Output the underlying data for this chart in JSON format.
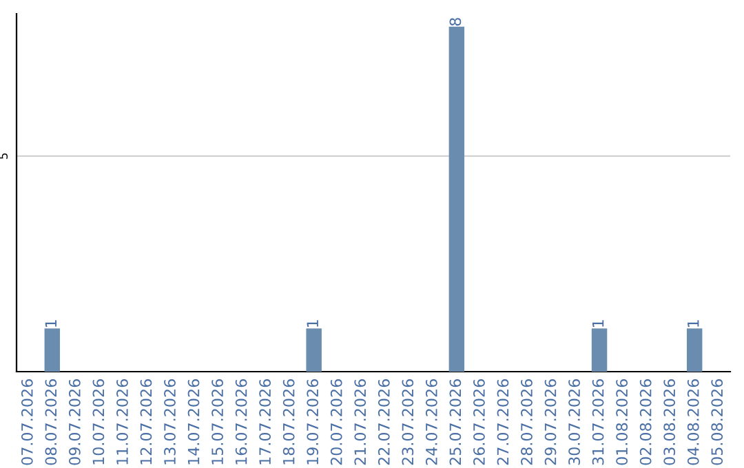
{
  "chart_data": {
    "type": "bar",
    "categories": [
      "07.07.2026",
      "08.07.2026",
      "09.07.2026",
      "10.07.2026",
      "11.07.2026",
      "12.07.2026",
      "13.07.2026",
      "14.07.2026",
      "15.07.2026",
      "16.07.2026",
      "17.07.2026",
      "18.07.2026",
      "19.07.2026",
      "20.07.2026",
      "21.07.2026",
      "22.07.2026",
      "23.07.2026",
      "24.07.2026",
      "25.07.2026",
      "26.07.2026",
      "27.07.2026",
      "28.07.2026",
      "29.07.2026",
      "30.07.2026",
      "31.07.2026",
      "01.08.2026",
      "02.08.2026",
      "03.08.2026",
      "04.08.2026",
      "05.08.2026"
    ],
    "values": [
      0,
      1,
      0,
      0,
      0,
      0,
      0,
      0,
      0,
      0,
      0,
      0,
      1,
      0,
      0,
      0,
      0,
      0,
      8,
      0,
      0,
      0,
      0,
      0,
      1,
      0,
      0,
      0,
      1,
      0
    ],
    "value_labels": [
      null,
      "1",
      null,
      null,
      null,
      null,
      null,
      null,
      null,
      null,
      null,
      null,
      "1",
      null,
      null,
      null,
      null,
      null,
      "8",
      null,
      null,
      null,
      null,
      null,
      "1",
      null,
      null,
      null,
      "1",
      null
    ],
    "color": "#6a8caf",
    "ylim": [
      0,
      8.3
    ],
    "yticks": [
      5
    ],
    "grid": "y"
  }
}
